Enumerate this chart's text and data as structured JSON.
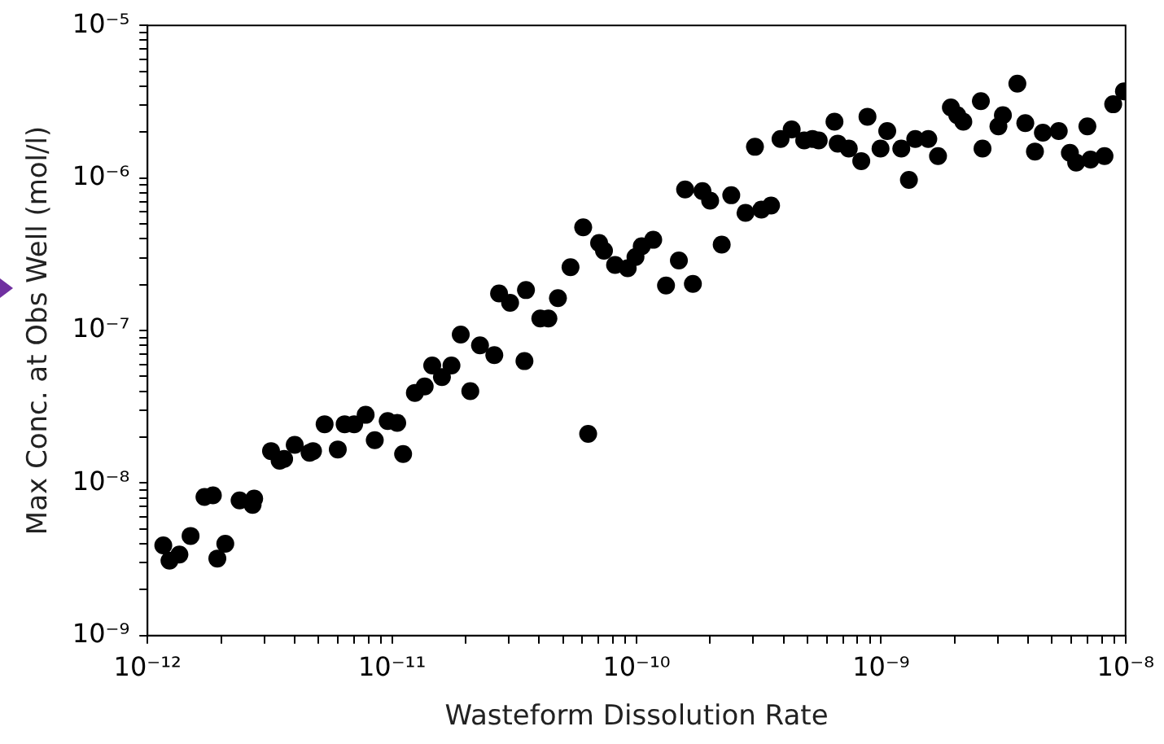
{
  "chart_data": {
    "type": "scatter",
    "xlabel": "Wasteform Dissolution Rate",
    "ylabel": "Max Conc. at Obs Well (mol/l)",
    "log": "xy",
    "marker": "circle",
    "grid": false,
    "legend": false,
    "xlim": [
      1e-12,
      1e-08
    ],
    "ylim": [
      1e-09,
      1e-05
    ],
    "xticks": [
      {
        "value": 1e-12,
        "label": "10⁻¹²"
      },
      {
        "value": 2e-12,
        "label": null
      },
      {
        "value": 3e-12,
        "label": null
      },
      {
        "value": 4e-12,
        "label": null
      },
      {
        "value": 5e-12,
        "label": null
      },
      {
        "value": 6e-12,
        "label": null
      },
      {
        "value": 7e-12,
        "label": null
      },
      {
        "value": 8e-12,
        "label": null
      },
      {
        "value": 9e-12,
        "label": null
      },
      {
        "value": 1e-11,
        "label": "10⁻¹¹"
      },
      {
        "value": 2e-11,
        "label": null
      },
      {
        "value": 3e-11,
        "label": null
      },
      {
        "value": 4e-11,
        "label": null
      },
      {
        "value": 5e-11,
        "label": null
      },
      {
        "value": 6e-11,
        "label": null
      },
      {
        "value": 7e-11,
        "label": null
      },
      {
        "value": 8e-11,
        "label": null
      },
      {
        "value": 9e-11,
        "label": null
      },
      {
        "value": 1e-10,
        "label": "10⁻¹⁰"
      },
      {
        "value": 2e-10,
        "label": null
      },
      {
        "value": 3e-10,
        "label": null
      },
      {
        "value": 4e-10,
        "label": null
      },
      {
        "value": 5e-10,
        "label": null
      },
      {
        "value": 6e-10,
        "label": null
      },
      {
        "value": 7e-10,
        "label": null
      },
      {
        "value": 8e-10,
        "label": null
      },
      {
        "value": 9e-10,
        "label": null
      },
      {
        "value": 1e-09,
        "label": "10⁻⁹"
      },
      {
        "value": 2e-09,
        "label": null
      },
      {
        "value": 3e-09,
        "label": null
      },
      {
        "value": 4e-09,
        "label": null
      },
      {
        "value": 5e-09,
        "label": null
      },
      {
        "value": 6e-09,
        "label": null
      },
      {
        "value": 7e-09,
        "label": null
      },
      {
        "value": 8e-09,
        "label": null
      },
      {
        "value": 9e-09,
        "label": null
      },
      {
        "value": 1e-08,
        "label": "10⁻⁸"
      }
    ],
    "yticks": [
      {
        "value": 1e-09,
        "label": "10⁻⁹"
      },
      {
        "value": 2e-09,
        "label": null
      },
      {
        "value": 3e-09,
        "label": null
      },
      {
        "value": 4e-09,
        "label": null
      },
      {
        "value": 5e-09,
        "label": null
      },
      {
        "value": 6e-09,
        "label": null
      },
      {
        "value": 7e-09,
        "label": null
      },
      {
        "value": 8e-09,
        "label": null
      },
      {
        "value": 9e-09,
        "label": null
      },
      {
        "value": 1e-08,
        "label": "10⁻⁸"
      },
      {
        "value": 2e-08,
        "label": null
      },
      {
        "value": 3e-08,
        "label": null
      },
      {
        "value": 4e-08,
        "label": null
      },
      {
        "value": 5e-08,
        "label": null
      },
      {
        "value": 6e-08,
        "label": null
      },
      {
        "value": 7e-08,
        "label": null
      },
      {
        "value": 8e-08,
        "label": null
      },
      {
        "value": 9e-08,
        "label": null
      },
      {
        "value": 1e-07,
        "label": "10⁻⁷"
      },
      {
        "value": 2e-07,
        "label": null
      },
      {
        "value": 3e-07,
        "label": null
      },
      {
        "value": 4e-07,
        "label": null
      },
      {
        "value": 5e-07,
        "label": null
      },
      {
        "value": 6e-07,
        "label": null
      },
      {
        "value": 7e-07,
        "label": null
      },
      {
        "value": 8e-07,
        "label": null
      },
      {
        "value": 9e-07,
        "label": null
      },
      {
        "value": 1e-06,
        "label": "10⁻⁶"
      },
      {
        "value": 2e-06,
        "label": null
      },
      {
        "value": 3e-06,
        "label": null
      },
      {
        "value": 4e-06,
        "label": null
      },
      {
        "value": 5e-06,
        "label": null
      },
      {
        "value": 6e-06,
        "label": null
      },
      {
        "value": 7e-06,
        "label": null
      },
      {
        "value": 8e-06,
        "label": null
      },
      {
        "value": 9e-06,
        "label": null
      },
      {
        "value": 1e-05,
        "label": "10⁻⁵"
      }
    ],
    "series": [
      {
        "color": "#000000",
        "x": [
          1.16e-12,
          1.23e-12,
          1.35e-12,
          1.5e-12,
          1.71e-12,
          1.85e-12,
          1.93e-12,
          2.08e-12,
          2.38e-12,
          2.69e-12,
          2.73e-12,
          3.2e-12,
          3.47e-12,
          3.62e-12,
          4e-12,
          4.6e-12,
          4.75e-12,
          5.3e-12,
          6e-12,
          6.4e-12,
          7e-12,
          7.8e-12,
          8.5e-12,
          9.6e-12,
          1.05e-11,
          1.11e-11,
          1.24e-11,
          1.36e-11,
          1.46e-11,
          1.6e-11,
          1.75e-11,
          1.91e-11,
          2.09e-11,
          2.29e-11,
          2.62e-11,
          2.74e-11,
          3.04e-11,
          3.53e-11,
          3.48e-11,
          4.04e-11,
          4.36e-11,
          4.77e-11,
          5.37e-11,
          6.05e-11,
          6.34e-11,
          7.03e-11,
          7.36e-11,
          8.17e-11,
          9.2e-11,
          9.9e-11,
          1.05e-10,
          1.17e-10,
          1.32e-10,
          1.49e-10,
          1.7e-10,
          1.58e-10,
          1.86e-10,
          2e-10,
          2.44e-10,
          2.23e-10,
          2.79e-10,
          3.24e-10,
          3.55e-10,
          3.05e-10,
          3.88e-10,
          4.31e-10,
          4.85e-10,
          5.24e-10,
          5.56e-10,
          6.45e-10,
          6.65e-10,
          7.38e-10,
          8.3e-10,
          8.8e-10,
          9.95e-10,
          1.06e-09,
          1.21e-09,
          1.3e-09,
          1.38e-09,
          1.56e-09,
          1.71e-09,
          1.93e-09,
          2.05e-09,
          2.17e-09,
          2.56e-09,
          2.6e-09,
          3.02e-09,
          3.15e-09,
          3.61e-09,
          3.89e-09,
          4.26e-09,
          4.59e-09,
          5.33e-09,
          5.92e-09,
          6.28e-09,
          6.98e-09,
          7.19e-09,
          8.2e-09,
          8.9e-09,
          9.85e-09
        ],
        "values": [
          3.9e-09,
          3.1e-09,
          3.4e-09,
          4.5e-09,
          8.1e-09,
          8.3e-09,
          3.2e-09,
          4e-09,
          7.7e-09,
          7.2e-09,
          7.9e-09,
          1.62e-08,
          1.4e-08,
          1.44e-08,
          1.78e-08,
          1.58e-08,
          1.62e-08,
          2.43e-08,
          1.66e-08,
          2.43e-08,
          2.43e-08,
          2.8e-08,
          1.91e-08,
          2.55e-08,
          2.48e-08,
          1.55e-08,
          3.9e-08,
          4.3e-08,
          5.9e-08,
          4.95e-08,
          5.9e-08,
          9.4e-08,
          4e-08,
          8e-08,
          6.9e-08,
          1.75e-07,
          1.52e-07,
          1.84e-07,
          6.3e-08,
          1.2e-07,
          1.2e-07,
          1.63e-07,
          2.6e-07,
          4.75e-07,
          2.1e-08,
          3.75e-07,
          3.33e-07,
          2.69e-07,
          2.56e-07,
          3.03e-07,
          3.57e-07,
          3.93e-07,
          1.97e-07,
          2.88e-07,
          2.02e-07,
          8.4e-07,
          8.2e-07,
          7.1e-07,
          7.7e-07,
          3.66e-07,
          5.9e-07,
          6.2e-07,
          6.6e-07,
          1.6e-06,
          1.8e-06,
          2.08e-06,
          1.76e-06,
          1.8e-06,
          1.76e-06,
          2.34e-06,
          1.68e-06,
          1.56e-06,
          1.29e-06,
          2.52e-06,
          1.56e-06,
          2.03e-06,
          1.56e-06,
          9.7e-07,
          1.8e-06,
          1.8e-06,
          1.39e-06,
          2.9e-06,
          2.58e-06,
          2.34e-06,
          3.19e-06,
          1.56e-06,
          2.18e-06,
          2.58e-06,
          4.15e-06,
          2.29e-06,
          1.49e-06,
          1.98e-06,
          2.03e-06,
          1.46e-06,
          1.26e-06,
          2.18e-06,
          1.32e-06,
          1.39e-06,
          3.04e-06,
          3.69e-06
        ]
      }
    ]
  }
}
